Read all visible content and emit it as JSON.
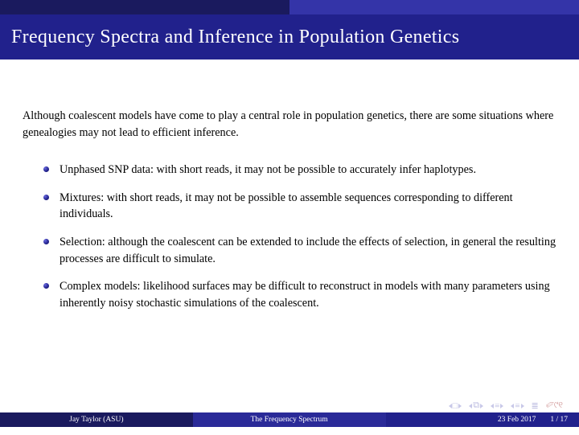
{
  "title": "Frequency Spectra and Inference in Population Genetics",
  "intro": "Although coalescent models have come to play a central role in population genetics, there are some situations where genealogies may not lead to efficient inference.",
  "bullets": [
    "Unphased SNP data: with short reads, it may not be possible to accurately infer haplotypes.",
    "Mixtures: with short reads, it may not be possible to assemble sequences corresponding to different individuals.",
    "Selection: although the coalescent can be extended to include the effects of selection, in general the resulting processes are difficult to simulate.",
    "Complex models: likelihood surfaces may be difficult to reconstruct in models with many parameters using inherently noisy stochastic simulations of the coalescent."
  ],
  "footer": {
    "author": "Jay Taylor (ASU)",
    "short_title": "The Frequency Spectrum",
    "date": "23 Feb 2017",
    "page": "1 / 17"
  },
  "colors": {
    "dark_blue": "#1a1a5e",
    "mid_blue": "#3434a8",
    "title_blue": "#21218c",
    "footer_mid": "#2a2a98"
  }
}
